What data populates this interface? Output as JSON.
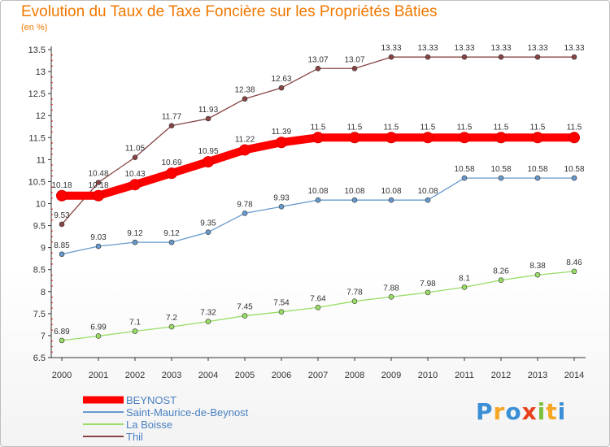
{
  "title": "Evolution du Taux de Taxe Foncière sur les Propriétés Bâties",
  "unit": "(en %)",
  "logo": {
    "letters": [
      "P",
      "r",
      "o",
      "x",
      "i",
      "t",
      "i"
    ],
    "colors": [
      "#3a8fd6",
      "#f5a623",
      "#3a8fd6",
      "#e8411c",
      "#7bbf3a",
      "#f5a623",
      "#3a8fd6"
    ]
  },
  "chart_data": {
    "type": "line",
    "x": [
      "2000",
      "2001",
      "2002",
      "2003",
      "2004",
      "2005",
      "2006",
      "2007",
      "2008",
      "2009",
      "2010",
      "2011",
      "2012",
      "2013",
      "2014"
    ],
    "ylim": [
      6.5,
      13.5
    ],
    "yticks": [
      "6.5",
      "7",
      "7.5",
      "8",
      "8.5",
      "9",
      "9.5",
      "10",
      "10.5",
      "11",
      "11.5",
      "12",
      "12.5",
      "13",
      "13.5"
    ],
    "grid": false,
    "legend_position": "bottom-left",
    "series": [
      {
        "name": "BEYNOST",
        "color": "#ff0000",
        "values": [
          10.18,
          10.18,
          10.43,
          10.69,
          10.95,
          11.22,
          11.39,
          11.5,
          11.5,
          11.5,
          11.5,
          11.5,
          11.5,
          11.5,
          11.5
        ],
        "labels": [
          "10.18",
          "10.18",
          "10.43",
          "10.69",
          "10.95",
          "11.22",
          "11.39",
          "11.5",
          "11.5",
          "11.5",
          "11.5",
          "11.5",
          "11.5",
          "11.5",
          "11.5"
        ]
      },
      {
        "name": "Saint-Maurice-de-Beynost",
        "color": "#6699cc",
        "values": [
          8.85,
          9.03,
          9.12,
          9.12,
          9.35,
          9.78,
          9.93,
          10.08,
          10.08,
          10.08,
          10.08,
          10.58,
          10.58,
          10.58,
          10.58
        ],
        "labels": [
          "8.85",
          "9.03",
          "9.12",
          "9.12",
          "9.35",
          "9.78",
          "9.93",
          "10.08",
          "10.08",
          "10.08",
          "10.08",
          "10.58",
          "10.58",
          "10.58",
          "10.58"
        ]
      },
      {
        "name": "La Boisse",
        "color": "#99dd66",
        "values": [
          6.89,
          6.99,
          7.1,
          7.2,
          7.32,
          7.45,
          7.54,
          7.64,
          7.78,
          7.88,
          7.98,
          8.1,
          8.26,
          8.38,
          8.46
        ],
        "labels": [
          "6.89",
          "6.99",
          "7.1",
          "7.2",
          "7.32",
          "7.45",
          "7.54",
          "7.64",
          "7.78",
          "7.88",
          "7.98",
          "8.1",
          "8.26",
          "8.38",
          "8.46"
        ]
      },
      {
        "name": "Thil",
        "color": "#884444",
        "values": [
          9.53,
          10.48,
          11.05,
          11.77,
          11.93,
          12.38,
          12.63,
          13.07,
          13.07,
          13.33,
          13.33,
          13.33,
          13.33,
          13.33,
          13.33
        ],
        "labels": [
          "9.53",
          "10.48",
          "11.05",
          "11.77",
          "11.93",
          "12.38",
          "12.63",
          "13.07",
          "13.07",
          "13.33",
          "13.33",
          "13.33",
          "13.33",
          "13.33",
          "13.33"
        ]
      }
    ]
  }
}
